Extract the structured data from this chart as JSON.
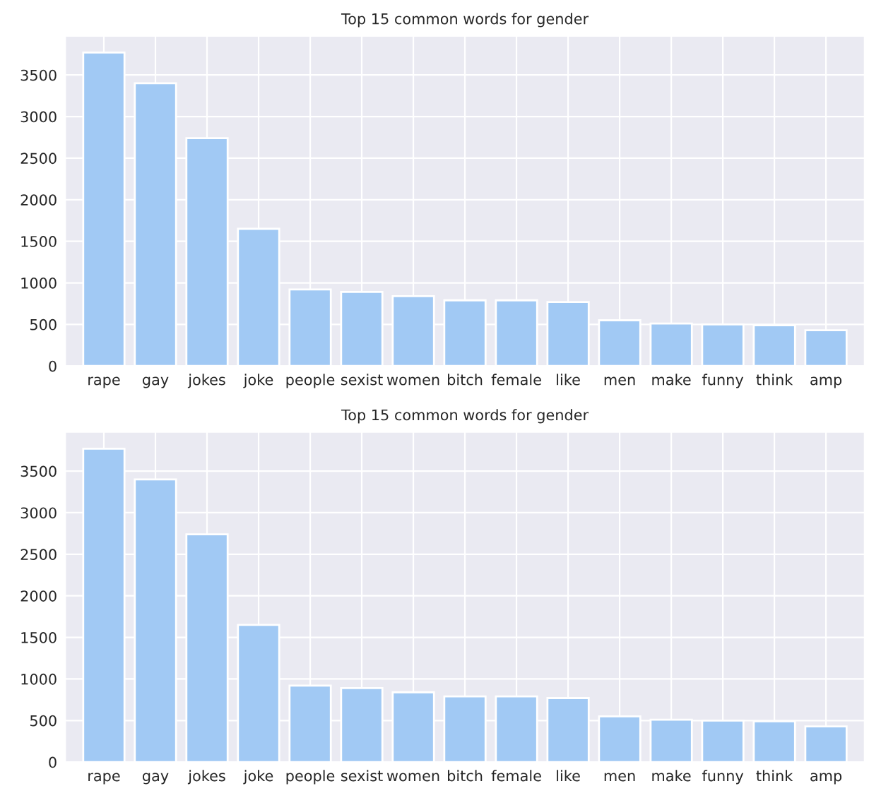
{
  "chart_data": [
    {
      "type": "bar",
      "title": "Top 15 common words for gender",
      "categories": [
        "rape",
        "gay",
        "jokes",
        "joke",
        "people",
        "sexist",
        "women",
        "bitch",
        "female",
        "like",
        "men",
        "make",
        "funny",
        "think",
        "amp"
      ],
      "values": [
        3770,
        3400,
        2740,
        1650,
        920,
        890,
        840,
        790,
        790,
        770,
        550,
        510,
        500,
        490,
        430
      ],
      "color": "#a1c9f4",
      "ylim": [
        0,
        3970
      ],
      "yticks": [
        0,
        500,
        1000,
        1500,
        2000,
        2500,
        3000,
        3500
      ],
      "grid": true
    },
    {
      "type": "bar",
      "title": "Top 15 common words for gender",
      "categories": [
        "rape",
        "gay",
        "jokes",
        "joke",
        "people",
        "sexist",
        "women",
        "bitch",
        "female",
        "like",
        "men",
        "make",
        "funny",
        "think",
        "amp"
      ],
      "values": [
        3770,
        3400,
        2740,
        1650,
        920,
        890,
        840,
        790,
        790,
        770,
        550,
        510,
        500,
        490,
        430
      ],
      "color": "#a1c9f4",
      "ylim": [
        0,
        3970
      ],
      "yticks": [
        0,
        500,
        1000,
        1500,
        2000,
        2500,
        3000,
        3500
      ],
      "grid": true
    }
  ]
}
